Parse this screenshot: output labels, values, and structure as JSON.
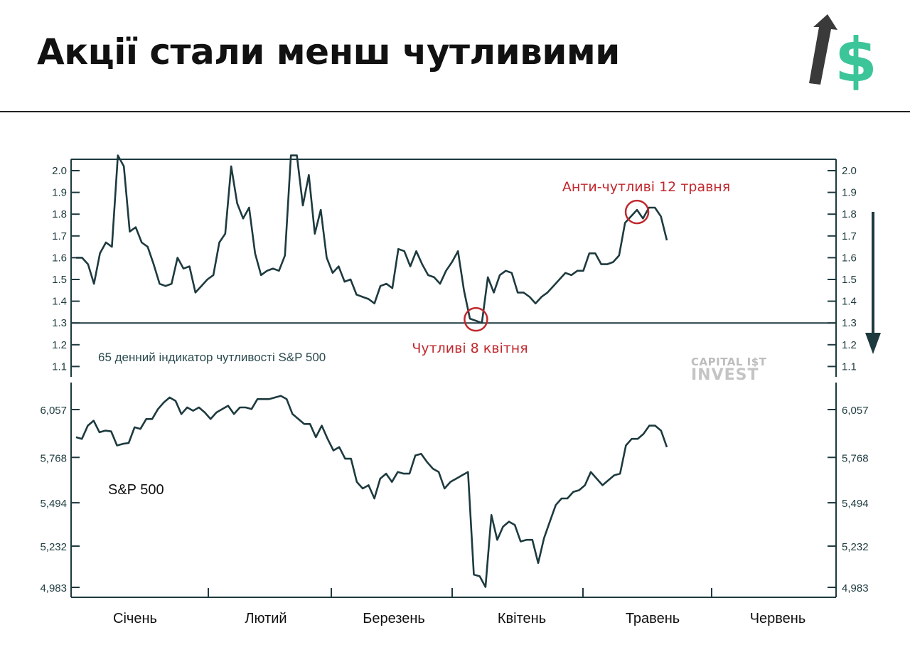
{
  "header": {
    "title": "Акції стали менш чутливими"
  },
  "logo": {
    "icon": "arrow-dollar-logo-icon",
    "arrow_color": "#3a3a3a",
    "dollar_color": "#3dc59a"
  },
  "watermark": {
    "line1": "CAPITAL I$T",
    "line2": "INVEST"
  },
  "colors": {
    "line": "#1d3a3f",
    "annotation": "#c0282d"
  },
  "chart_data": [
    {
      "type": "line",
      "title": "",
      "series": [
        {
          "name": "65 денний індикатор чутливості S&P 500",
          "values": [
            1.6,
            1.6,
            1.57,
            1.48,
            1.62,
            1.67,
            1.65,
            2.07,
            2.02,
            1.72,
            1.74,
            1.67,
            1.65,
            1.57,
            1.48,
            1.47,
            1.48,
            1.6,
            1.55,
            1.56,
            1.44,
            1.47,
            1.5,
            1.52,
            1.67,
            1.71,
            2.02,
            1.85,
            1.78,
            1.83,
            1.62,
            1.52,
            1.54,
            1.55,
            1.54,
            1.61,
            2.07,
            2.07,
            1.84,
            1.98,
            1.71,
            1.82,
            1.6,
            1.53,
            1.56,
            1.49,
            1.5,
            1.43,
            1.42,
            1.41,
            1.39,
            1.47,
            1.48,
            1.46,
            1.64,
            1.63,
            1.56,
            1.63,
            1.57,
            1.52,
            1.51,
            1.48,
            1.54,
            1.58,
            1.63,
            1.45,
            1.32,
            1.31,
            1.3,
            1.51,
            1.44,
            1.52,
            1.54,
            1.53,
            1.44,
            1.44,
            1.42,
            1.39,
            1.42,
            1.44,
            1.47,
            1.5,
            1.53,
            1.52,
            1.54,
            1.54,
            1.62,
            1.62,
            1.57,
            1.57,
            1.58,
            1.61,
            1.76,
            1.79,
            1.82,
            1.78,
            1.83,
            1.83,
            1.79,
            1.68
          ]
        }
      ],
      "y_ticks": [
        "2.0",
        "1.9",
        "1.8",
        "1.7",
        "1.6",
        "1.5",
        "1.4",
        "1.3",
        "1.2",
        "1.1"
      ],
      "ylim": [
        1.03,
        2.07
      ],
      "reference_line": 1.3,
      "annotations": [
        {
          "text": "Анти-чутливі 12 травня",
          "point_index": 94
        },
        {
          "text": "Чутливі 8 квітня",
          "point_index": 67
        }
      ],
      "trend_arrow": "down"
    },
    {
      "type": "line",
      "title": "",
      "series": [
        {
          "name": "S&P 500",
          "values": [
            5890,
            5880,
            5960,
            5990,
            5920,
            5930,
            5925,
            5840,
            5850,
            5855,
            5950,
            5940,
            6000,
            6000,
            6060,
            6100,
            6130,
            6110,
            6030,
            6070,
            6050,
            6070,
            6040,
            6000,
            6040,
            6060,
            6080,
            6030,
            6070,
            6070,
            6060,
            6120,
            6120,
            6120,
            6130,
            6140,
            6120,
            6030,
            6000,
            5970,
            5970,
            5890,
            5960,
            5880,
            5810,
            5830,
            5760,
            5760,
            5620,
            5580,
            5600,
            5520,
            5640,
            5670,
            5620,
            5680,
            5670,
            5670,
            5780,
            5790,
            5740,
            5700,
            5680,
            5580,
            5620,
            5640,
            5660,
            5680,
            5060,
            5050,
            4985,
            5420,
            5270,
            5350,
            5380,
            5360,
            5260,
            5270,
            5270,
            5130,
            5280,
            5380,
            5480,
            5520,
            5520,
            5560,
            5570,
            5600,
            5680,
            5640,
            5600,
            5630,
            5660,
            5670,
            5840,
            5880,
            5880,
            5910,
            5960,
            5960,
            5930,
            5830
          ]
        }
      ],
      "y_ticks": [
        "6,057",
        "5,768",
        "5,494",
        "5,232",
        "4,983"
      ],
      "ylim": [
        4960,
        6215
      ]
    }
  ],
  "x_axis": {
    "months": [
      "Січень",
      "Лютий",
      "Березень",
      "Квітень",
      "Травень",
      "Червень"
    ]
  }
}
